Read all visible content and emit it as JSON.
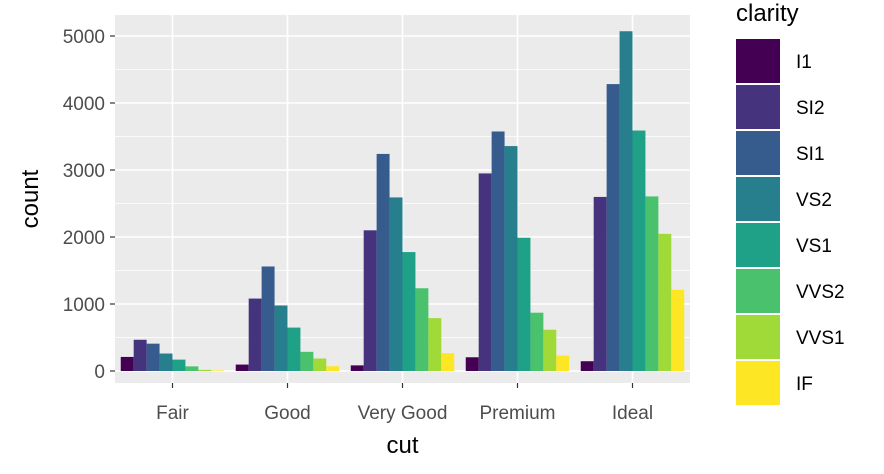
{
  "chart_data": {
    "type": "bar",
    "position": "dodge",
    "title": "",
    "xlabel": "cut",
    "ylabel": "count",
    "ylim": [
      0,
      5300
    ],
    "yticks": [
      0,
      1000,
      2000,
      3000,
      4000,
      5000
    ],
    "categories": [
      "Fair",
      "Good",
      "Very Good",
      "Premium",
      "Ideal"
    ],
    "legend_title": "clarity",
    "legend_position": "right",
    "panel_background": "#ebebeb",
    "grid_color": "#ffffff",
    "series": [
      {
        "name": "I1",
        "color": "#440154",
        "values": [
          210,
          96,
          84,
          205,
          146
        ]
      },
      {
        "name": "SI2",
        "color": "#46337e",
        "values": [
          466,
          1081,
          2100,
          2949,
          2598
        ]
      },
      {
        "name": "SI1",
        "color": "#365c8d",
        "values": [
          408,
          1560,
          3240,
          3575,
          4282
        ]
      },
      {
        "name": "VS2",
        "color": "#277f8e",
        "values": [
          261,
          978,
          2591,
          3357,
          5071
        ]
      },
      {
        "name": "VS1",
        "color": "#1fa187",
        "values": [
          170,
          648,
          1775,
          1989,
          3589
        ]
      },
      {
        "name": "VVS2",
        "color": "#4ac16d",
        "values": [
          69,
          286,
          1235,
          870,
          2606
        ]
      },
      {
        "name": "VVS1",
        "color": "#a0da39",
        "values": [
          17,
          186,
          789,
          616,
          2047
        ]
      },
      {
        "name": "IF",
        "color": "#fde725",
        "values": [
          9,
          71,
          268,
          230,
          1212
        ]
      }
    ]
  }
}
